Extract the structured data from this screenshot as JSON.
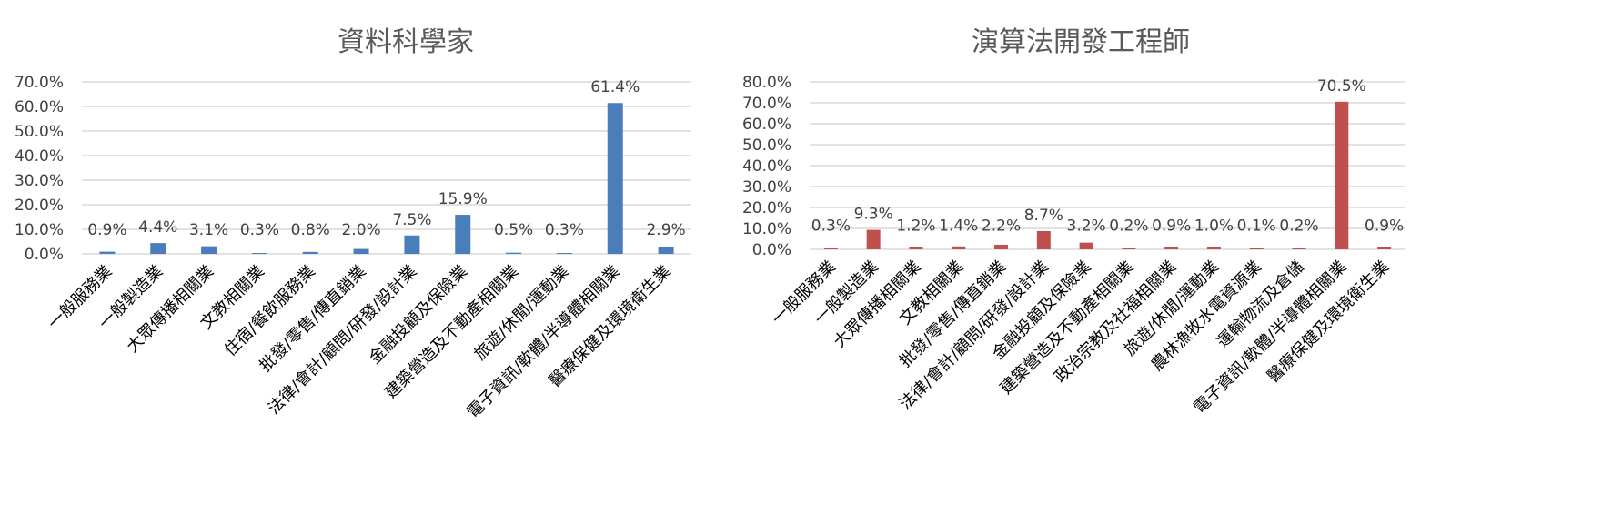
{
  "chart_data": [
    {
      "type": "bar",
      "title": "資料科學家",
      "categories": [
        "一般服務業",
        "一般製造業",
        "大眾傳播相關業",
        "文教相關業",
        "住宿/餐飲服務業",
        "批發/零售/傳直銷業",
        "法律/會計/顧問/研發/設計業",
        "金融投顧及保險業",
        "建築營造及不動產相關業",
        "旅遊/休閒/運動業",
        "電子資訊/軟體/半導體相關業",
        "醫療保健及環境衛生業"
      ],
      "values": [
        0.9,
        4.4,
        3.1,
        0.3,
        0.8,
        2.0,
        7.5,
        15.9,
        0.5,
        0.3,
        61.4,
        2.9
      ],
      "value_labels": [
        "0.9%",
        "4.4%",
        "3.1%",
        "0.3%",
        "0.8%",
        "2.0%",
        "7.5%",
        "15.9%",
        "0.5%",
        "0.3%",
        "61.4%",
        "2.9%"
      ],
      "yticks": [
        "0.0%",
        "10.0%",
        "20.0%",
        "30.0%",
        "40.0%",
        "50.0%",
        "60.0%",
        "70.0%"
      ],
      "ylim": [
        0,
        70
      ],
      "color": "#4a7ebb",
      "grid": true
    },
    {
      "type": "bar",
      "title": "演算法開發工程師",
      "categories": [
        "一般服務業",
        "一般製造業",
        "大眾傳播相關業",
        "文教相關業",
        "批發/零售/傳直銷業",
        "法律/會計/顧問/研發/設計業",
        "金融投顧及保險業",
        "建築營造及不動產相關業",
        "政治宗教及社福相關業",
        "旅遊/休閒/運動業",
        "農林漁牧水電資源業",
        "運輸物流及倉儲",
        "電子資訊/軟體/半導體相關業",
        "醫療保健及環境衛生業"
      ],
      "values": [
        0.3,
        9.3,
        1.2,
        1.4,
        2.2,
        8.7,
        3.2,
        0.2,
        0.9,
        1.0,
        0.1,
        0.2,
        70.5,
        0.9
      ],
      "value_labels": [
        "0.3%",
        "9.3%",
        "1.2%",
        "1.4%",
        "2.2%",
        "8.7%",
        "3.2%",
        "0.2%",
        "0.9%",
        "1.0%",
        "0.1%",
        "0.2%",
        "70.5%",
        "0.9%"
      ],
      "yticks": [
        "0.0%",
        "10.0%",
        "20.0%",
        "30.0%",
        "40.0%",
        "50.0%",
        "60.0%",
        "70.0%",
        "80.0%"
      ],
      "ylim": [
        0,
        80
      ],
      "color": "#c0504d",
      "grid": true
    }
  ]
}
